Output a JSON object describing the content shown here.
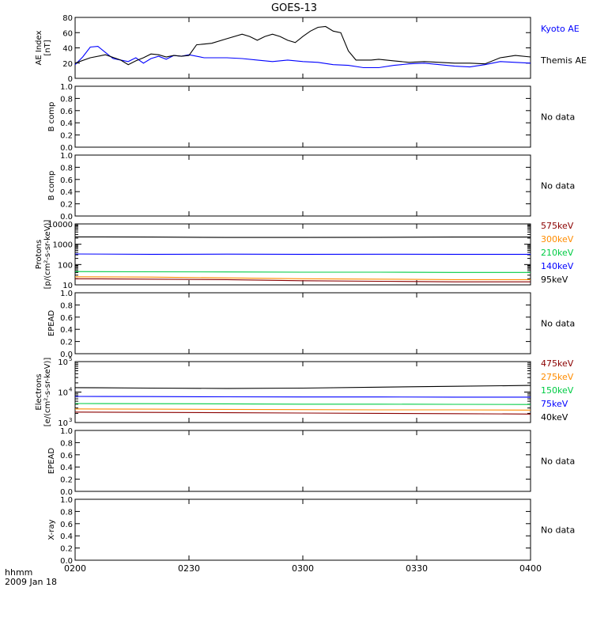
{
  "title": "GOES-13",
  "chart_data": [
    {
      "type": "line",
      "ylabel": "AE Index [nT]",
      "ylim": [
        0,
        80
      ],
      "yticks": [
        "0",
        "20",
        "40",
        "60",
        "80"
      ],
      "xlim": [
        "02:00",
        "04:00"
      ],
      "grid": false,
      "series": [
        {
          "name": "Kyoto AE",
          "color": "#0000FF",
          "x": [
            "02:00",
            "02:02",
            "02:04",
            "02:06",
            "02:08",
            "02:10",
            "02:12",
            "02:14",
            "02:16",
            "02:18",
            "02:20",
            "02:22",
            "02:24",
            "02:26",
            "02:28",
            "02:30",
            "02:34",
            "02:40",
            "02:44",
            "02:48",
            "02:52",
            "02:56",
            "03:00",
            "03:04",
            "03:08",
            "03:12",
            "03:16",
            "03:20",
            "03:24",
            "03:28",
            "03:32",
            "03:36",
            "03:40",
            "03:44",
            "03:48",
            "03:52",
            "03:56",
            "04:00"
          ],
          "values": [
            18,
            28,
            41,
            42,
            34,
            26,
            24,
            22,
            27,
            20,
            26,
            29,
            25,
            30,
            29,
            31,
            27,
            27,
            26,
            24,
            22,
            24,
            22,
            21,
            18,
            17,
            14,
            14,
            17,
            19,
            20,
            18,
            16,
            15,
            18,
            22,
            21,
            20
          ]
        },
        {
          "name": "Themis AE",
          "color": "#000000",
          "x": [
            "02:00",
            "02:04",
            "02:08",
            "02:12",
            "02:14",
            "02:16",
            "02:18",
            "02:20",
            "02:22",
            "02:24",
            "02:26",
            "02:28",
            "02:30",
            "02:32",
            "02:34",
            "02:36",
            "02:40",
            "02:44",
            "02:46",
            "02:48",
            "02:50",
            "02:52",
            "02:54",
            "02:56",
            "02:58",
            "03:00",
            "03:02",
            "03:04",
            "03:06",
            "03:08",
            "03:10",
            "03:12",
            "03:14",
            "03:16",
            "03:18",
            "03:20",
            "03:24",
            "03:28",
            "03:32",
            "03:36",
            "03:40",
            "03:44",
            "03:48",
            "03:52",
            "03:56",
            "04:00"
          ],
          "values": [
            20,
            27,
            31,
            24,
            18,
            23,
            27,
            32,
            31,
            28,
            30,
            29,
            30,
            44,
            45,
            46,
            52,
            58,
            55,
            50,
            55,
            58,
            55,
            50,
            47,
            55,
            62,
            67,
            68,
            62,
            60,
            36,
            24,
            24,
            24,
            25,
            23,
            21,
            22,
            21,
            20,
            20,
            19,
            27,
            30,
            28
          ]
        }
      ]
    },
    {
      "type": "line",
      "ylabel": "B comp",
      "ylim": [
        0,
        1
      ],
      "yticks": [
        "0.0",
        "0.2",
        "0.4",
        "0.6",
        "0.8",
        "1.0"
      ],
      "status": "No data",
      "series": []
    },
    {
      "type": "line",
      "ylabel": "B comp",
      "ylim": [
        0,
        1
      ],
      "yticks": [
        "0.0",
        "0.2",
        "0.4",
        "0.6",
        "0.8",
        "1.0"
      ],
      "status": "No data",
      "series": []
    },
    {
      "type": "line",
      "ylabel": "Protons [p/(cm²-s-sr-keV)]",
      "log": true,
      "ylim": [
        10,
        10000
      ],
      "yticks": [
        "10",
        "100",
        "1000",
        "10000"
      ],
      "series": [
        {
          "name": "575keV",
          "color": "#8B0000",
          "x": [
            "02:00",
            "02:20",
            "02:40",
            "03:00",
            "03:20",
            "03:40",
            "04:00"
          ],
          "values": [
            20,
            19,
            18,
            16,
            15,
            14,
            14
          ]
        },
        {
          "name": "300keV",
          "color": "#FF8C00",
          "x": [
            "02:00",
            "02:20",
            "02:40",
            "03:00",
            "03:20",
            "03:40",
            "04:00"
          ],
          "values": [
            25,
            24,
            22,
            20,
            19,
            18,
            18
          ]
        },
        {
          "name": "210keV",
          "color": "#00CC44",
          "x": [
            "02:00",
            "02:20",
            "02:40",
            "03:00",
            "03:20",
            "03:40",
            "04:00"
          ],
          "values": [
            45,
            44,
            43,
            42,
            42,
            41,
            41
          ]
        },
        {
          "name": "140keV",
          "color": "#0000FF",
          "x": [
            "02:00",
            "02:20",
            "02:40",
            "03:00",
            "03:20",
            "03:40",
            "04:00"
          ],
          "values": [
            330,
            320,
            325,
            320,
            322,
            318,
            320
          ]
        },
        {
          "name": "95keV",
          "color": "#000000",
          "x": [
            "02:00",
            "02:20",
            "02:40",
            "03:00",
            "03:20",
            "03:40",
            "04:00"
          ],
          "values": [
            2300,
            2250,
            2150,
            2150,
            2200,
            2250,
            2250
          ]
        }
      ]
    },
    {
      "type": "line",
      "ylabel": "EPEAD",
      "ylim": [
        0,
        1
      ],
      "yticks": [
        "0.0",
        "0.2",
        "0.4",
        "0.6",
        "0.8",
        "1.0"
      ],
      "status": "No data",
      "series": []
    },
    {
      "type": "line",
      "ylabel": "Electrons [e/(cm²-s-sr-keV)]",
      "log": true,
      "ylim": [
        1000,
        100000
      ],
      "ytick_bases": [
        "10",
        "10",
        "10"
      ],
      "ytick_exps": [
        "3",
        "4",
        "5"
      ],
      "series": [
        {
          "name": "475keV",
          "color": "#8B0000",
          "x": [
            "02:00",
            "02:20",
            "02:40",
            "03:00",
            "03:20",
            "03:40",
            "04:00"
          ],
          "values": [
            2200,
            2150,
            2100,
            2050,
            2000,
            1950,
            1900
          ]
        },
        {
          "name": "275keV",
          "color": "#FF8C00",
          "x": [
            "02:00",
            "02:20",
            "02:40",
            "03:00",
            "03:20",
            "03:40",
            "04:00"
          ],
          "values": [
            2800,
            2750,
            2700,
            2650,
            2600,
            2600,
            2550
          ]
        },
        {
          "name": "150keV",
          "color": "#00CC44",
          "x": [
            "02:00",
            "02:20",
            "02:40",
            "03:00",
            "03:20",
            "03:40",
            "04:00"
          ],
          "values": [
            4200,
            4150,
            4100,
            4000,
            4000,
            3950,
            3900
          ]
        },
        {
          "name": "75keV",
          "color": "#0000FF",
          "x": [
            "02:00",
            "02:20",
            "02:40",
            "03:00",
            "03:20",
            "03:40",
            "04:00"
          ],
          "values": [
            7200,
            7100,
            7000,
            6900,
            6900,
            6800,
            6800
          ]
        },
        {
          "name": "40keV",
          "color": "#000000",
          "x": [
            "02:00",
            "02:20",
            "02:40",
            "03:00",
            "03:20",
            "03:40",
            "04:00"
          ],
          "values": [
            14000,
            13500,
            13200,
            13500,
            14500,
            15500,
            16500
          ]
        }
      ]
    },
    {
      "type": "line",
      "ylabel": "EPEAD",
      "ylim": [
        0,
        1
      ],
      "yticks": [
        "0.0",
        "0.2",
        "0.4",
        "0.6",
        "0.8",
        "1.0"
      ],
      "status": "No data",
      "series": []
    },
    {
      "type": "line",
      "ylabel": "X-ray",
      "ylim": [
        0,
        1
      ],
      "yticks": [
        "0.0",
        "0.2",
        "0.4",
        "0.6",
        "0.8",
        "1.0"
      ],
      "status": "No data",
      "series": []
    }
  ],
  "xaxis": {
    "ticks": [
      "0200",
      "0230",
      "0300",
      "0330",
      "0400"
    ],
    "tick_times": [
      "02:00",
      "02:30",
      "03:00",
      "03:30",
      "04:00"
    ],
    "label_line1": "hhmm",
    "label_line2": "2009 Jan 18"
  }
}
